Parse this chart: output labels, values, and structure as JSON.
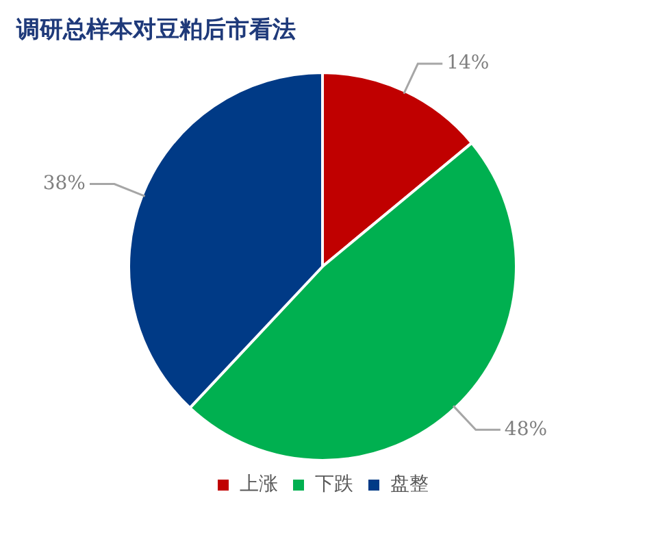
{
  "chart_data": {
    "type": "pie",
    "title": "调研总样本对豆粕后市看法",
    "categories": [
      "上涨",
      "下跌",
      "盘整"
    ],
    "values": [
      14,
      48,
      38
    ],
    "colors": [
      "#c00000",
      "#00b050",
      "#003a86"
    ],
    "value_labels": [
      "14%",
      "48%",
      "38%"
    ],
    "legend": "bottom"
  }
}
